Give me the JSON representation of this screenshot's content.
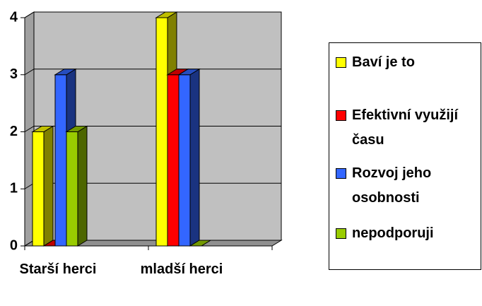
{
  "chart_data": {
    "type": "bar3d",
    "categories": [
      "Starší herci",
      "mladší herci"
    ],
    "series": [
      {
        "name": "Baví je to",
        "color": "#ffff00",
        "values": [
          2,
          4
        ]
      },
      {
        "name": "Efektivní využijí času",
        "color": "#ff0000",
        "values": [
          0,
          3
        ]
      },
      {
        "name": "Rozvoj jeho osobnosti",
        "color": "#3366ff",
        "values": [
          3,
          3
        ]
      },
      {
        "name": "nepodporuji",
        "color": "#99cc00",
        "values": [
          2,
          0
        ]
      }
    ],
    "ylim": [
      0,
      4
    ],
    "yticks": [
      0,
      1,
      2,
      3,
      4
    ],
    "grid": true,
    "legend": "right"
  }
}
